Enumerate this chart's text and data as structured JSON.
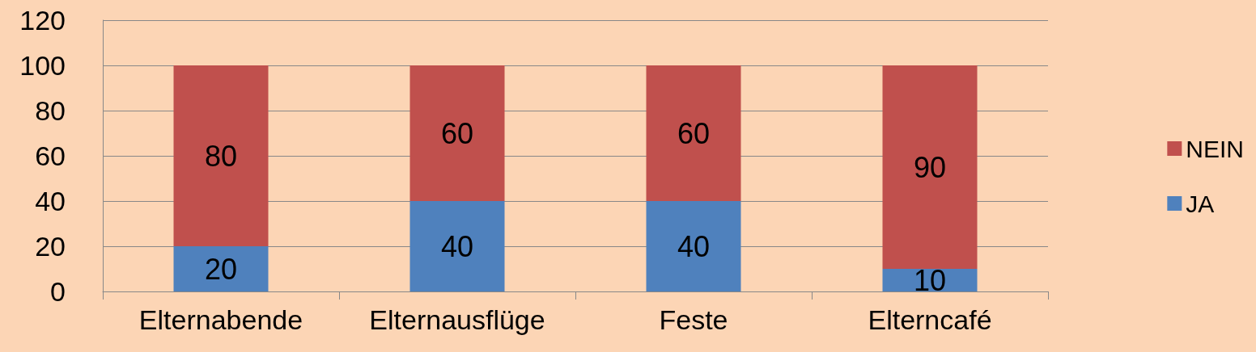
{
  "chart_data": {
    "type": "bar",
    "stacked": true,
    "categories": [
      "Elternabende",
      "Elternausflüge",
      "Feste",
      "Elterncafé"
    ],
    "series": [
      {
        "name": "JA",
        "color": "#4f81bd",
        "values": [
          20,
          40,
          40,
          10
        ]
      },
      {
        "name": "NEIN",
        "color": "#c0504d",
        "values": [
          80,
          60,
          60,
          90
        ]
      }
    ],
    "ylim": [
      0,
      120
    ],
    "yticks": [
      0,
      20,
      40,
      60,
      80,
      100,
      120
    ],
    "grid": "y",
    "legend": "right",
    "data_labels": true
  }
}
